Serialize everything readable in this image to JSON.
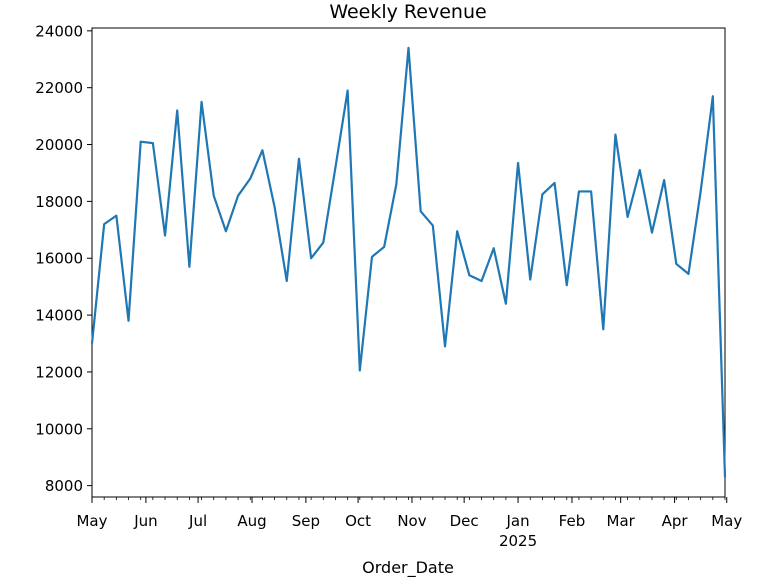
{
  "chart_data": {
    "type": "line",
    "title": "Weekly Revenue",
    "xlabel": "Order_Date",
    "ylabel": "",
    "ylim": [
      7600,
      24100
    ],
    "y_ticks": [
      8000,
      10000,
      12000,
      14000,
      16000,
      18000,
      20000,
      22000,
      24000
    ],
    "x_ticks": [
      {
        "date": "2024-05-01",
        "label": "May",
        "sublabel": ""
      },
      {
        "date": "2024-06-01",
        "label": "Jun",
        "sublabel": ""
      },
      {
        "date": "2024-07-01",
        "label": "Jul",
        "sublabel": ""
      },
      {
        "date": "2024-08-01",
        "label": "Aug",
        "sublabel": ""
      },
      {
        "date": "2024-09-01",
        "label": "Sep",
        "sublabel": ""
      },
      {
        "date": "2024-10-01",
        "label": "Oct",
        "sublabel": ""
      },
      {
        "date": "2024-11-01",
        "label": "Nov",
        "sublabel": ""
      },
      {
        "date": "2024-12-01",
        "label": "Dec",
        "sublabel": ""
      },
      {
        "date": "2025-01-01",
        "label": "Jan",
        "sublabel": "2025"
      },
      {
        "date": "2025-02-01",
        "label": "Feb",
        "sublabel": ""
      },
      {
        "date": "2025-03-01",
        "label": "Mar",
        "sublabel": ""
      },
      {
        "date": "2025-04-01",
        "label": "Apr",
        "sublabel": ""
      },
      {
        "date": "2025-05-01",
        "label": "May",
        "sublabel": ""
      }
    ],
    "grid": false,
    "series": [
      {
        "color": "#1f77b4",
        "x": [
          "2024-05-01",
          "2024-05-08",
          "2024-05-15",
          "2024-05-22",
          "2024-05-29",
          "2024-06-05",
          "2024-06-12",
          "2024-06-19",
          "2024-06-26",
          "2024-07-03",
          "2024-07-10",
          "2024-07-17",
          "2024-07-24",
          "2024-07-31",
          "2024-08-07",
          "2024-08-14",
          "2024-08-21",
          "2024-08-28",
          "2024-09-04",
          "2024-09-11",
          "2024-09-18",
          "2024-09-25",
          "2024-10-02",
          "2024-10-09",
          "2024-10-16",
          "2024-10-23",
          "2024-10-30",
          "2024-11-06",
          "2024-11-13",
          "2024-11-20",
          "2024-11-27",
          "2024-12-04",
          "2024-12-11",
          "2024-12-18",
          "2024-12-25",
          "2025-01-01",
          "2025-01-08",
          "2025-01-15",
          "2025-01-22",
          "2025-01-29",
          "2025-02-05",
          "2025-02-12",
          "2025-02-19",
          "2025-02-26",
          "2025-03-05",
          "2025-03-12",
          "2025-03-19",
          "2025-03-26",
          "2025-04-02",
          "2025-04-09",
          "2025-04-16",
          "2025-04-23",
          "2025-04-30"
        ],
        "values": [
          13000,
          17200,
          17500,
          13800,
          20100,
          20050,
          16800,
          21200,
          15700,
          21500,
          18200,
          16950,
          18200,
          18800,
          19800,
          17800,
          15200,
          19500,
          16000,
          16550,
          19200,
          21900,
          12050,
          16050,
          16400,
          18600,
          23400,
          17650,
          17150,
          12900,
          16950,
          15400,
          15200,
          16350,
          14400,
          19350,
          15250,
          18250,
          18650,
          15050,
          18350,
          18350,
          13500,
          20350,
          17450,
          19100,
          16900,
          18750,
          15800,
          15450,
          18350,
          21700,
          8300
        ]
      }
    ]
  }
}
